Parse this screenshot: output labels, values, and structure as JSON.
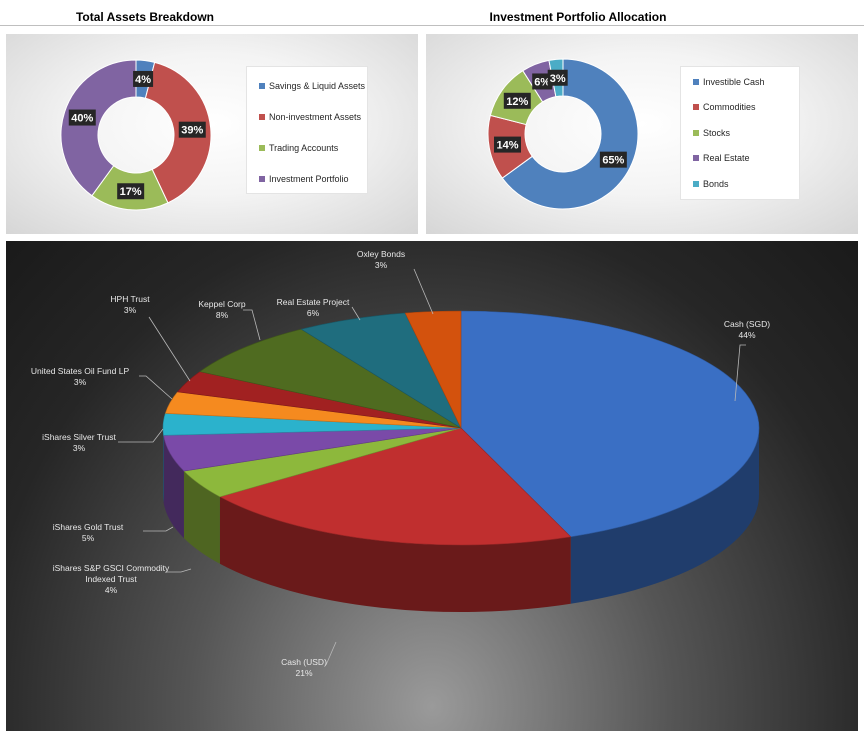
{
  "chart_data": [
    {
      "type": "pie",
      "title": "Total Assets Breakdown",
      "categories": [
        "Savings & Liquid Assets",
        "Non-investment Assets",
        "Trading Accounts",
        "Investment Portfolio"
      ],
      "values": [
        4,
        39,
        17,
        40
      ],
      "data_labels": [
        "4%",
        "39%",
        "17%",
        "40%"
      ],
      "colors": [
        "#4f81bd",
        "#c0504d",
        "#9bbb59",
        "#8064a2"
      ],
      "legend_position": "right",
      "style": "doughnut"
    },
    {
      "type": "pie",
      "title": "Investment Portfolio Allocation",
      "categories": [
        "Investible Cash",
        "Commodities",
        "Stocks",
        "Real Estate",
        "Bonds"
      ],
      "values": [
        65,
        14,
        12,
        6,
        3
      ],
      "data_labels": [
        "65%",
        "14%",
        "12%",
        "6%",
        "3%"
      ],
      "colors": [
        "#4f81bd",
        "#c0504d",
        "#9bbb59",
        "#8064a2",
        "#4bacc6"
      ],
      "legend_position": "right",
      "style": "doughnut"
    },
    {
      "type": "pie",
      "title": "",
      "style": "3d",
      "categories": [
        "Cash (SGD)",
        "Cash (USD)",
        "iShares S&P GSCI Commodity Indexed Trust",
        "iShares Gold Trust",
        "iShares Silver Trust",
        "United States Oil Fund LP",
        "HPH Trust",
        "Keppel Corp",
        "Real Estate Project",
        "Oxley Bonds"
      ],
      "values": [
        44,
        21,
        4,
        5,
        3,
        3,
        3,
        8,
        6,
        3
      ],
      "data_labels": [
        "44%",
        "21%",
        "4%",
        "5%",
        "3%",
        "3%",
        "3%",
        "8%",
        "6%",
        "3%"
      ],
      "colors": [
        "#3a6fc4",
        "#c02f2f",
        "#8db83c",
        "#7a4aa8",
        "#2bb2cc",
        "#f58a1f",
        "#a12121",
        "#4f6b20",
        "#1f6d7e",
        "#d3520d"
      ]
    }
  ],
  "labels3d": {
    "cash_sgd": [
      "Cash (SGD)",
      "44%"
    ],
    "cash_usd": [
      "Cash (USD)",
      "21%"
    ],
    "commodity": [
      "iShares S&P GSCI Commodity",
      "Indexed Trust",
      "4%"
    ],
    "gold": [
      "iShares Gold Trust",
      "5%"
    ],
    "silver": [
      "iShares Silver Trust",
      "3%"
    ],
    "oil": [
      "United States Oil Fund LP",
      "3%"
    ],
    "hph": [
      "HPH Trust",
      "3%"
    ],
    "keppel": [
      "Keppel Corp",
      "8%"
    ],
    "realestate": [
      "Real Estate Project",
      "6%"
    ],
    "oxley": [
      "Oxley Bonds",
      "3%"
    ]
  }
}
